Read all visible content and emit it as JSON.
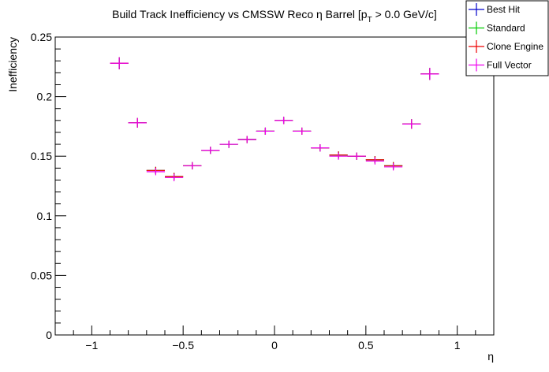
{
  "chart_data": {
    "type": "scatter",
    "title_main": "Build Track Inefficiency vs CMSSW Reco η Barrel [p",
    "title_sub": "T",
    "title_tail": " > 0.0 GeV/c]",
    "xlabel": "η",
    "ylabel": "Inefficiency",
    "xlim": [
      -1.2,
      1.2
    ],
    "ylim": [
      0,
      0.25
    ],
    "x_ticks": [
      -1,
      -0.5,
      0,
      0.5,
      1
    ],
    "x_tick_labels": [
      "−1",
      "−0.5",
      "0",
      "0.5",
      "1"
    ],
    "y_ticks": [
      0,
      0.05,
      0.1,
      0.15,
      0.2,
      0.25
    ],
    "y_tick_labels": [
      "0",
      "0.05",
      "0.1",
      "0.15",
      "0.2",
      "0.25"
    ],
    "legend_position": "top-right",
    "x": [
      -0.85,
      -0.75,
      -0.65,
      -0.55,
      -0.45,
      -0.35,
      -0.25,
      -0.15,
      -0.05,
      0.05,
      0.15,
      0.25,
      0.35,
      0.45,
      0.55,
      0.65,
      0.75,
      0.85
    ],
    "x_halfwidth": 0.05,
    "series": [
      {
        "name": "Best Hit",
        "color": "#0000cc",
        "values": [
          0.228,
          0.178,
          0.138,
          0.133,
          0.142,
          0.155,
          0.16,
          0.164,
          0.171,
          0.18,
          0.171,
          0.157,
          0.151,
          0.15,
          0.147,
          0.142,
          0.177,
          0.219
        ],
        "errors": [
          0.005,
          0.004,
          0.003,
          0.003,
          0.003,
          0.003,
          0.003,
          0.003,
          0.003,
          0.003,
          0.003,
          0.003,
          0.003,
          0.003,
          0.003,
          0.003,
          0.004,
          0.005
        ]
      },
      {
        "name": "Standard",
        "color": "#00cc00",
        "values": [
          0.228,
          0.178,
          0.138,
          0.133,
          0.142,
          0.155,
          0.16,
          0.164,
          0.171,
          0.18,
          0.171,
          0.157,
          0.151,
          0.15,
          0.147,
          0.142,
          0.177,
          0.219
        ],
        "errors": [
          0.005,
          0.004,
          0.003,
          0.003,
          0.003,
          0.003,
          0.003,
          0.003,
          0.003,
          0.003,
          0.003,
          0.003,
          0.003,
          0.003,
          0.003,
          0.003,
          0.004,
          0.005
        ]
      },
      {
        "name": "Clone Engine",
        "color": "#ee0000",
        "values": [
          0.228,
          0.178,
          0.138,
          0.133,
          0.142,
          0.155,
          0.16,
          0.164,
          0.171,
          0.18,
          0.171,
          0.157,
          0.151,
          0.15,
          0.147,
          0.142,
          0.177,
          0.219
        ],
        "errors": [
          0.005,
          0.004,
          0.003,
          0.003,
          0.003,
          0.003,
          0.003,
          0.003,
          0.003,
          0.003,
          0.003,
          0.003,
          0.003,
          0.003,
          0.003,
          0.003,
          0.004,
          0.005
        ]
      },
      {
        "name": "Full Vector",
        "color": "#ee00ee",
        "values": [
          0.228,
          0.178,
          0.137,
          0.132,
          0.142,
          0.155,
          0.16,
          0.164,
          0.171,
          0.18,
          0.171,
          0.157,
          0.15,
          0.15,
          0.146,
          0.141,
          0.177,
          0.219
        ],
        "errors": [
          0.005,
          0.004,
          0.003,
          0.003,
          0.003,
          0.003,
          0.003,
          0.003,
          0.003,
          0.003,
          0.003,
          0.003,
          0.003,
          0.003,
          0.003,
          0.003,
          0.004,
          0.005
        ]
      }
    ]
  }
}
